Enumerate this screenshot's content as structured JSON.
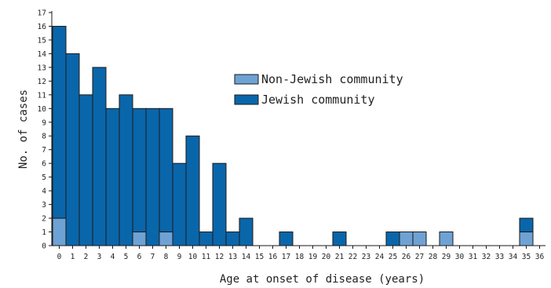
{
  "chart_data": {
    "type": "bar",
    "stacked": true,
    "xlabel": "Age at onset of disease (years)",
    "ylabel": "No. of cases",
    "ylim": [
      0,
      17
    ],
    "yticks": [
      0,
      1,
      2,
      3,
      4,
      5,
      6,
      7,
      8,
      9,
      10,
      11,
      12,
      13,
      14,
      15,
      16,
      17
    ],
    "categories": [
      0,
      1,
      2,
      3,
      4,
      5,
      6,
      7,
      8,
      9,
      10,
      11,
      12,
      13,
      14,
      15,
      16,
      17,
      18,
      19,
      20,
      21,
      22,
      23,
      24,
      25,
      26,
      27,
      28,
      29,
      30,
      31,
      32,
      33,
      34,
      35,
      36
    ],
    "legend_position": "upper-right",
    "grid": false,
    "series": [
      {
        "name": "Non-Jewish community",
        "color": "#6fa2d4",
        "values": [
          2,
          0,
          0,
          0,
          0,
          0,
          1,
          0,
          1,
          0,
          0,
          0,
          0,
          0,
          0,
          0,
          0,
          0,
          0,
          0,
          0,
          0,
          0,
          0,
          0,
          0,
          1,
          1,
          0,
          1,
          0,
          0,
          0,
          0,
          0,
          1,
          0
        ]
      },
      {
        "name": "Jewish community",
        "color": "#0a66aa",
        "values": [
          14,
          14,
          11,
          13,
          10,
          11,
          9,
          10,
          9,
          6,
          8,
          1,
          6,
          1,
          2,
          0,
          0,
          1,
          0,
          0,
          0,
          1,
          0,
          0,
          0,
          1,
          0,
          0,
          0,
          0,
          0,
          0,
          0,
          0,
          0,
          1,
          0
        ]
      }
    ]
  }
}
